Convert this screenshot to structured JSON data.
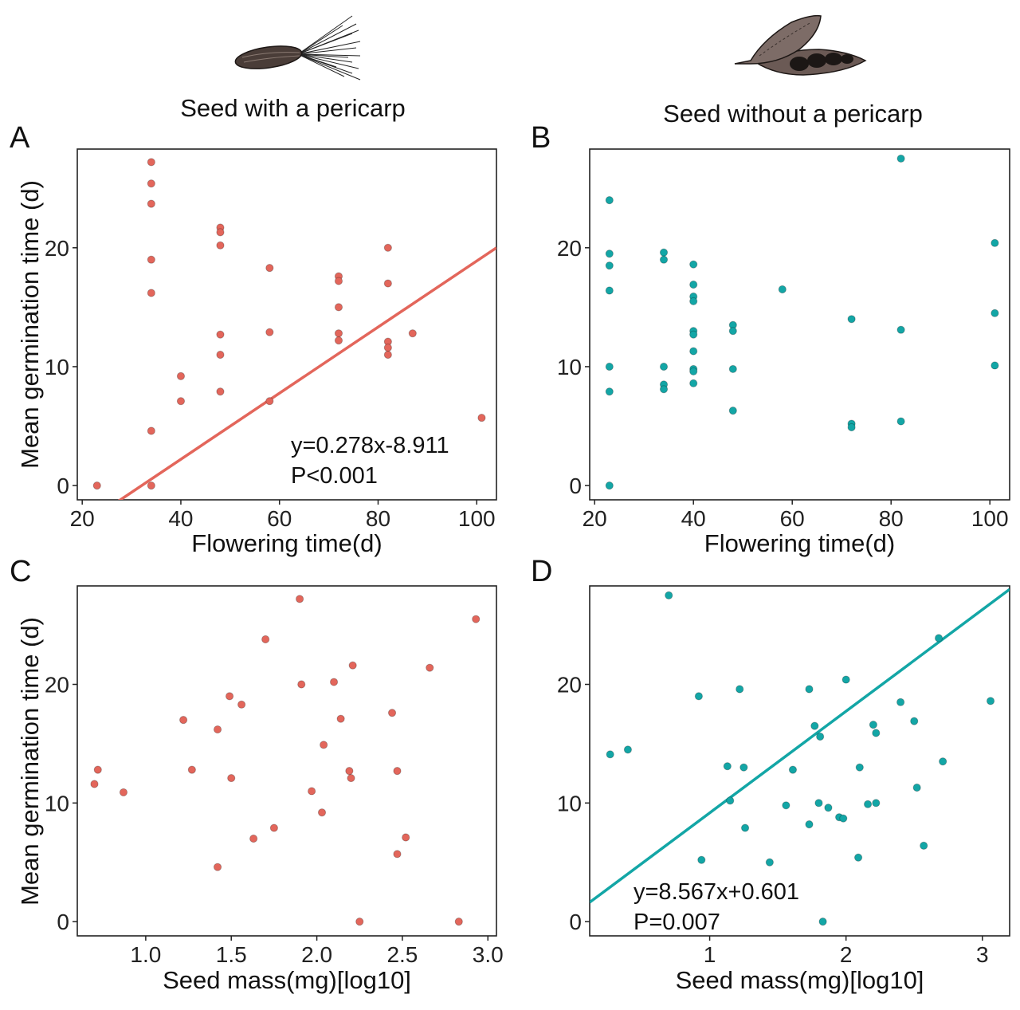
{
  "headers": {
    "left": {
      "title": "Seed with a pericarp",
      "illustration": "achene-with-pappus-icon"
    },
    "right": {
      "title": "Seed without a pericarp",
      "illustration": "open-legume-pod-icon"
    }
  },
  "colors": {
    "red": "#E3665B",
    "teal": "#13A6A6",
    "axis": "#222222"
  },
  "chart_data": [
    {
      "id": "A",
      "type": "scatter",
      "panel_label": "A",
      "group": "Seed with a pericarp",
      "xlabel": "Flowering time(d)",
      "ylabel": "Mean germination time (d)",
      "xlim": [
        19,
        104
      ],
      "ylim": [
        -1.2,
        28.3
      ],
      "xticks": [
        20,
        40,
        60,
        80,
        100
      ],
      "yticks": [
        0,
        10,
        20
      ],
      "color": "red",
      "points": [
        [
          23,
          0
        ],
        [
          34,
          27.2
        ],
        [
          34,
          25.4
        ],
        [
          34,
          23.7
        ],
        [
          34,
          19.0
        ],
        [
          34,
          16.2
        ],
        [
          34,
          4.6
        ],
        [
          34,
          0
        ],
        [
          40,
          9.2
        ],
        [
          40,
          7.1
        ],
        [
          48,
          21.7
        ],
        [
          48,
          21.3
        ],
        [
          48,
          20.2
        ],
        [
          48,
          12.7
        ],
        [
          48,
          11.0
        ],
        [
          48,
          7.9
        ],
        [
          58,
          18.3
        ],
        [
          58,
          12.9
        ],
        [
          58,
          7.1
        ],
        [
          72,
          17.6
        ],
        [
          72,
          17.2
        ],
        [
          72,
          15.0
        ],
        [
          72,
          12.8
        ],
        [
          72,
          12.2
        ],
        [
          82,
          20.0
        ],
        [
          82,
          17.0
        ],
        [
          82,
          12.1
        ],
        [
          82,
          11.6
        ],
        [
          82,
          11.0
        ],
        [
          87,
          12.8
        ],
        [
          101,
          5.7
        ]
      ],
      "fit": {
        "slope": 0.278,
        "intercept": -8.911
      },
      "annotations": [
        "y=0.278x-8.911",
        "P<0.001"
      ],
      "annotation_position": "bottom-right",
      "grid": false
    },
    {
      "id": "B",
      "type": "scatter",
      "panel_label": "B",
      "group": "Seed without a pericarp",
      "xlabel": "Flowering time(d)",
      "ylabel": "",
      "xlim": [
        19,
        104
      ],
      "ylim": [
        -1.2,
        28.3
      ],
      "xticks": [
        20,
        40,
        60,
        80,
        100
      ],
      "yticks": [
        0,
        10,
        20
      ],
      "color": "teal",
      "points": [
        [
          23,
          24.0
        ],
        [
          23,
          19.5
        ],
        [
          23,
          18.5
        ],
        [
          23,
          16.4
        ],
        [
          23,
          10.0
        ],
        [
          23,
          7.9
        ],
        [
          23,
          0
        ],
        [
          34,
          19.6
        ],
        [
          34,
          19.0
        ],
        [
          34,
          10.0
        ],
        [
          34,
          8.5
        ],
        [
          34,
          8.1
        ],
        [
          40,
          18.6
        ],
        [
          40,
          16.9
        ],
        [
          40,
          15.9
        ],
        [
          40,
          15.5
        ],
        [
          40,
          13.0
        ],
        [
          40,
          12.7
        ],
        [
          40,
          11.3
        ],
        [
          40,
          9.8
        ],
        [
          40,
          9.6
        ],
        [
          40,
          8.6
        ],
        [
          48,
          13.5
        ],
        [
          48,
          13.0
        ],
        [
          48,
          9.8
        ],
        [
          48,
          6.3
        ],
        [
          58,
          16.5
        ],
        [
          72,
          14.0
        ],
        [
          72,
          5.2
        ],
        [
          72,
          4.9
        ],
        [
          82,
          27.5
        ],
        [
          82,
          13.1
        ],
        [
          82,
          5.4
        ],
        [
          101,
          20.4
        ],
        [
          101,
          14.5
        ],
        [
          101,
          10.1
        ]
      ],
      "fit": null,
      "annotations": [],
      "grid": false
    },
    {
      "id": "C",
      "type": "scatter",
      "panel_label": "C",
      "group": "Seed with a pericarp",
      "xlabel": "Seed mass(mg)[log10]",
      "ylabel": "Mean germination time (d)",
      "xlim": [
        0.6,
        3.05
      ],
      "ylim": [
        -1.2,
        28.3
      ],
      "xticks": [
        "1.0",
        "1.5",
        "2.0",
        "2.5",
        "3.0"
      ],
      "yticks": [
        0,
        10,
        20
      ],
      "color": "red",
      "points": [
        [
          0.7,
          11.6
        ],
        [
          0.72,
          12.8
        ],
        [
          0.87,
          10.9
        ],
        [
          1.22,
          17.0
        ],
        [
          1.27,
          12.8
        ],
        [
          1.42,
          16.2
        ],
        [
          1.42,
          4.6
        ],
        [
          1.49,
          19.0
        ],
        [
          1.5,
          12.1
        ],
        [
          1.56,
          18.3
        ],
        [
          1.63,
          7.0
        ],
        [
          1.7,
          23.8
        ],
        [
          1.75,
          7.9
        ],
        [
          1.9,
          27.2
        ],
        [
          1.91,
          20.0
        ],
        [
          1.97,
          11.0
        ],
        [
          2.03,
          9.2
        ],
        [
          2.04,
          14.9
        ],
        [
          2.1,
          20.2
        ],
        [
          2.14,
          17.1
        ],
        [
          2.19,
          12.7
        ],
        [
          2.2,
          12.1
        ],
        [
          2.21,
          21.6
        ],
        [
          2.25,
          0
        ],
        [
          2.44,
          17.6
        ],
        [
          2.47,
          12.7
        ],
        [
          2.47,
          5.7
        ],
        [
          2.52,
          7.1
        ],
        [
          2.66,
          21.4
        ],
        [
          2.83,
          0
        ],
        [
          2.93,
          25.5
        ]
      ],
      "fit": null,
      "annotations": [],
      "grid": false
    },
    {
      "id": "D",
      "type": "scatter",
      "panel_label": "D",
      "group": "Seed without a pericarp",
      "xlabel": "Seed mass(mg)[log10]",
      "ylabel": "",
      "xlim": [
        0.12,
        3.2
      ],
      "ylim": [
        -1.2,
        28.3
      ],
      "xticks": [
        "1",
        "2",
        "3"
      ],
      "yticks": [
        0,
        10,
        20
      ],
      "color": "teal",
      "points": [
        [
          0.27,
          14.1
        ],
        [
          0.4,
          14.5
        ],
        [
          0.7,
          27.5
        ],
        [
          0.92,
          19.0
        ],
        [
          0.94,
          5.2
        ],
        [
          1.13,
          13.1
        ],
        [
          1.15,
          10.2
        ],
        [
          1.22,
          19.6
        ],
        [
          1.25,
          13.0
        ],
        [
          1.26,
          7.9
        ],
        [
          1.44,
          5.0
        ],
        [
          1.56,
          9.8
        ],
        [
          1.61,
          12.8
        ],
        [
          1.73,
          19.6
        ],
        [
          1.73,
          8.2
        ],
        [
          1.77,
          16.5
        ],
        [
          1.8,
          10.0
        ],
        [
          1.81,
          15.6
        ],
        [
          1.83,
          0
        ],
        [
          1.87,
          9.6
        ],
        [
          1.95,
          8.8
        ],
        [
          1.98,
          8.7
        ],
        [
          2.0,
          20.4
        ],
        [
          2.09,
          5.4
        ],
        [
          2.1,
          13.0
        ],
        [
          2.16,
          9.9
        ],
        [
          2.2,
          16.6
        ],
        [
          2.22,
          15.9
        ],
        [
          2.22,
          10.0
        ],
        [
          2.4,
          18.5
        ],
        [
          2.5,
          16.9
        ],
        [
          2.52,
          11.3
        ],
        [
          2.57,
          6.4
        ],
        [
          2.68,
          23.9
        ],
        [
          2.71,
          13.5
        ],
        [
          3.06,
          18.6
        ]
      ],
      "fit": {
        "slope": 8.567,
        "intercept": 0.601
      },
      "annotations": [
        "y=8.567x+0.601",
        "P=0.007"
      ],
      "annotation_position": "bottom-left",
      "grid": false
    }
  ]
}
